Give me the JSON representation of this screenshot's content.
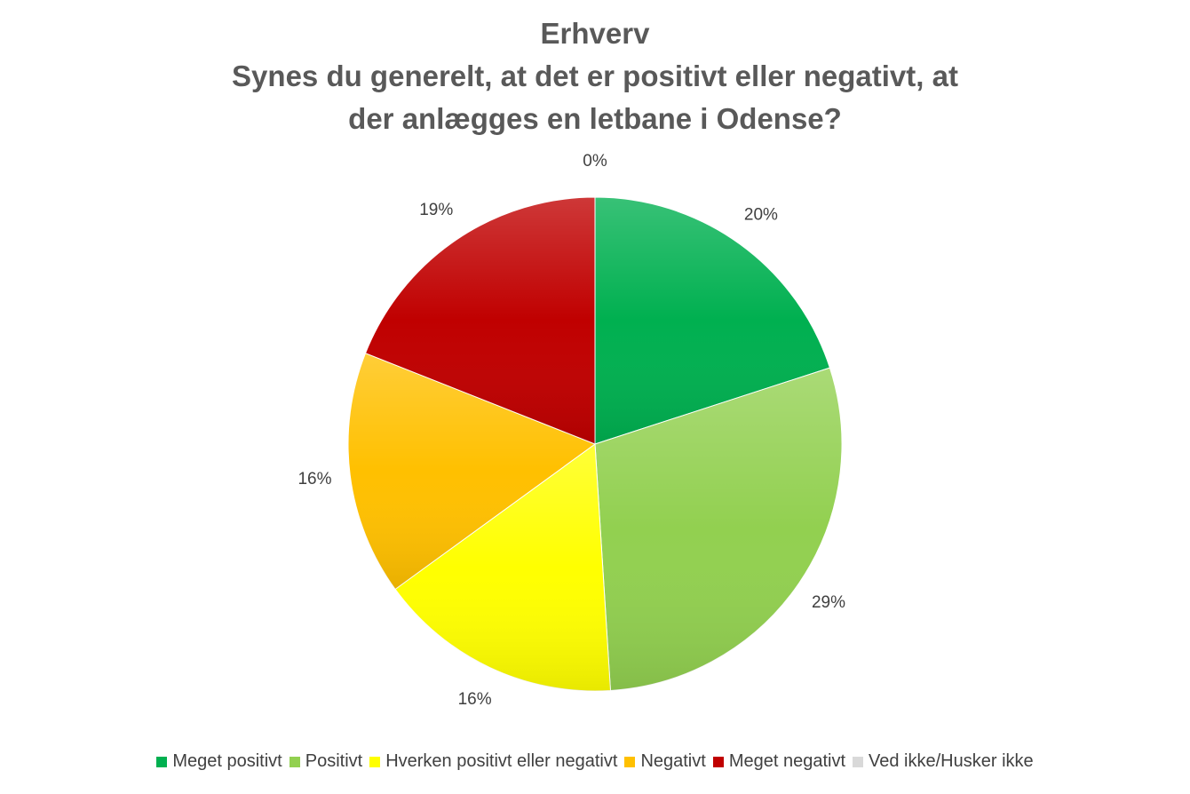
{
  "chart_data": {
    "type": "pie",
    "title_lines": [
      "Erhverv",
      "Synes du generelt, at det er positivt eller negativt, at",
      "der anlægges en letbane i Odense?"
    ],
    "slices": [
      {
        "name": "Meget positivt",
        "value": 20,
        "label": "20%",
        "color": "#00b050"
      },
      {
        "name": "Positivt",
        "value": 29,
        "label": "29%",
        "color": "#92d050"
      },
      {
        "name": "Hverken positivt eller negativt",
        "value": 16,
        "label": "16%",
        "color": "#ffff00"
      },
      {
        "name": "Negativt",
        "value": 16,
        "label": "16%",
        "color": "#ffc000"
      },
      {
        "name": "Meget negativt",
        "value": 19,
        "label": "19%",
        "color": "#c00000"
      },
      {
        "name": "Ved ikke/Husker ikke",
        "value": 0,
        "label": "0%",
        "color": "#d9d9d9"
      }
    ],
    "legend_position": "bottom"
  }
}
